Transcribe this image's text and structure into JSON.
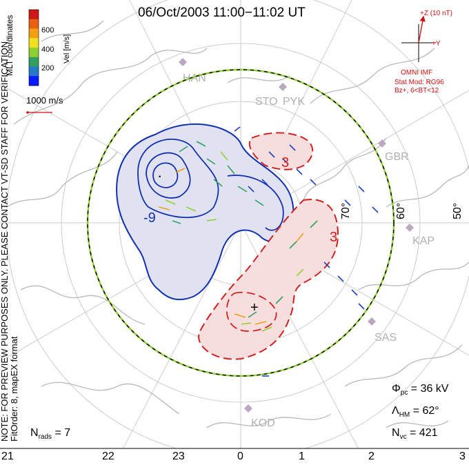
{
  "title": "06/Oct/2003 11:00−11:02 UT",
  "note": {
    "line1": "NOTE: FOR PREVIEW PURPOSES ONLY. PLEASE CONTACT VT-SD STAFF FOR VERIFICATION.",
    "line2": "FitOrder: 8, mapEX format"
  },
  "coordinates_label": "MLT coordinates",
  "colorbar": {
    "label": "Vel [m/s]",
    "ticks": [
      "600",
      "400",
      "200"
    ],
    "colors": [
      "#0a1aff",
      "#2a78c8",
      "#2fa060",
      "#8fd030",
      "#f0e020",
      "#f0a010",
      "#e86010",
      "#d01818"
    ]
  },
  "scale_label": "1000 m/s",
  "imf": {
    "z_label": "+Z (10 nT)",
    "y_label": "+Y",
    "source_label": "OMNI IMF",
    "model_line1": "Stat Mod: RG96",
    "model_line2": "Bz+, 6<BT<12"
  },
  "stats": {
    "phi_pc": "36 kV",
    "lambda_hm": "62°",
    "n_vc": "421",
    "n_rads": "7"
  },
  "symbols": {
    "phi": "Φ",
    "phi_sub": "pc",
    "lambda": "Λ",
    "lambda_sub": "HM",
    "n": "N",
    "n_vc_sub": "vc",
    "n_rads_sub": "rads"
  },
  "latitude_labels": [
    "70°",
    "60°",
    "50°"
  ],
  "mlt_labels": [
    "21",
    "22",
    "23",
    "0",
    "1",
    "2",
    "3"
  ],
  "stations": [
    "HAN",
    "STO",
    "PYK",
    "GBR",
    "KAP",
    "SAS",
    "KOD"
  ],
  "contours": {
    "negative_label": "-9",
    "positive_label_a": "3",
    "positive_label_b": "3",
    "min_marker": "·",
    "max_marker": "+",
    "negative_color": "#1030b0",
    "positive_color": "#d02020"
  }
}
